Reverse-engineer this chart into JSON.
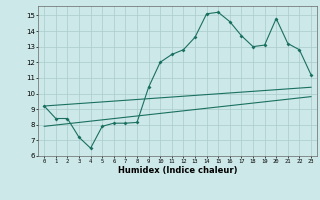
{
  "xlabel": "Humidex (Indice chaleur)",
  "background_color": "#cde8e8",
  "grid_color": "#aacccc",
  "line_color": "#1a7060",
  "xlim": [
    -0.5,
    23.5
  ],
  "ylim": [
    6,
    15.6
  ],
  "yticks": [
    6,
    7,
    8,
    9,
    10,
    11,
    12,
    13,
    14,
    15
  ],
  "xticks": [
    0,
    1,
    2,
    3,
    4,
    5,
    6,
    7,
    8,
    9,
    10,
    11,
    12,
    13,
    14,
    15,
    16,
    17,
    18,
    19,
    20,
    21,
    22,
    23
  ],
  "zigzag": {
    "x": [
      0,
      1,
      2,
      3,
      4,
      5,
      6,
      7,
      8,
      9,
      10,
      11,
      12,
      13,
      14,
      15,
      16,
      17,
      18,
      19,
      20,
      21,
      22,
      23
    ],
    "y": [
      9.2,
      8.4,
      8.4,
      7.2,
      6.5,
      7.9,
      8.1,
      8.1,
      8.15,
      10.4,
      12.0,
      12.5,
      12.8,
      13.6,
      15.1,
      15.2,
      14.6,
      13.7,
      13.0,
      13.1,
      14.8,
      13.2,
      12.8,
      11.2
    ]
  },
  "diag1": {
    "x": [
      0,
      23
    ],
    "y": [
      9.2,
      10.4
    ]
  },
  "diag2": {
    "x": [
      0,
      23
    ],
    "y": [
      7.9,
      9.8
    ]
  }
}
